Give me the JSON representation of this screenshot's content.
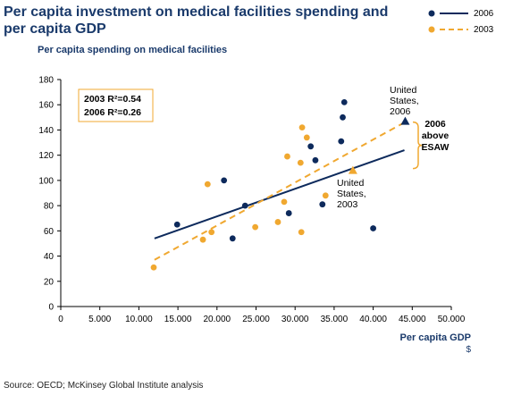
{
  "title": "Per capita investment on medical facilities spending and per capita GDP",
  "source": "Source: OECD; McKinsey Global Institute analysis",
  "chart_data": {
    "type": "scatter",
    "title": "Per capita investment on medical facilities spending and per capita GDP",
    "ylabel": "Per capita spending on medical facilities",
    "xlabel": "Per capita GDP",
    "xunit": "$",
    "xlim": [
      0,
      50000
    ],
    "ylim": [
      0,
      180
    ],
    "xticks": [
      "0",
      "5.000",
      "10.000",
      "15.000",
      "20.000",
      "25.000",
      "30.000",
      "35.000",
      "40.000",
      "45.000",
      "50.000"
    ],
    "xtick_values": [
      0,
      5000,
      10000,
      15000,
      20000,
      25000,
      30000,
      35000,
      40000,
      45000,
      50000
    ],
    "yticks": [
      "0",
      "20",
      "40",
      "60",
      "80",
      "100",
      "120",
      "140",
      "160",
      "180"
    ],
    "ytick_values": [
      0,
      20,
      40,
      60,
      80,
      100,
      120,
      140,
      160,
      180
    ],
    "series": [
      {
        "name": "2006",
        "color": "#0d2a5c",
        "points": [
          [
            14900,
            65
          ],
          [
            20900,
            100
          ],
          [
            22000,
            54
          ],
          [
            23600,
            80
          ],
          [
            29200,
            74
          ],
          [
            32000,
            127
          ],
          [
            32600,
            116
          ],
          [
            33500,
            81
          ],
          [
            35900,
            131
          ],
          [
            36100,
            150
          ],
          [
            36300,
            162
          ],
          [
            40000,
            62
          ]
        ],
        "highlight": [
          44100,
          147
        ],
        "trend": [
          [
            12000,
            54
          ],
          [
            44000,
            124
          ]
        ]
      },
      {
        "name": "2003",
        "color": "#f0a830",
        "points": [
          [
            11900,
            31
          ],
          [
            18200,
            53
          ],
          [
            18800,
            97
          ],
          [
            19300,
            59
          ],
          [
            24900,
            63
          ],
          [
            27800,
            67
          ],
          [
            28600,
            83
          ],
          [
            29000,
            119
          ],
          [
            30700,
            114
          ],
          [
            30800,
            59
          ],
          [
            30900,
            142
          ],
          [
            31500,
            134
          ],
          [
            33900,
            88
          ]
        ],
        "highlight": [
          37400,
          108
        ],
        "trend": [
          [
            12000,
            37
          ],
          [
            44000,
            146
          ]
        ]
      }
    ],
    "r2_box": [
      "2003 R²=0.54",
      "2006 R²=0.26"
    ],
    "annotations": {
      "us2006": [
        "United",
        "States,",
        "2006"
      ],
      "us2003": [
        "United",
        "States,",
        "2003"
      ],
      "above": [
        "2006",
        "above",
        "ESAW"
      ]
    }
  }
}
